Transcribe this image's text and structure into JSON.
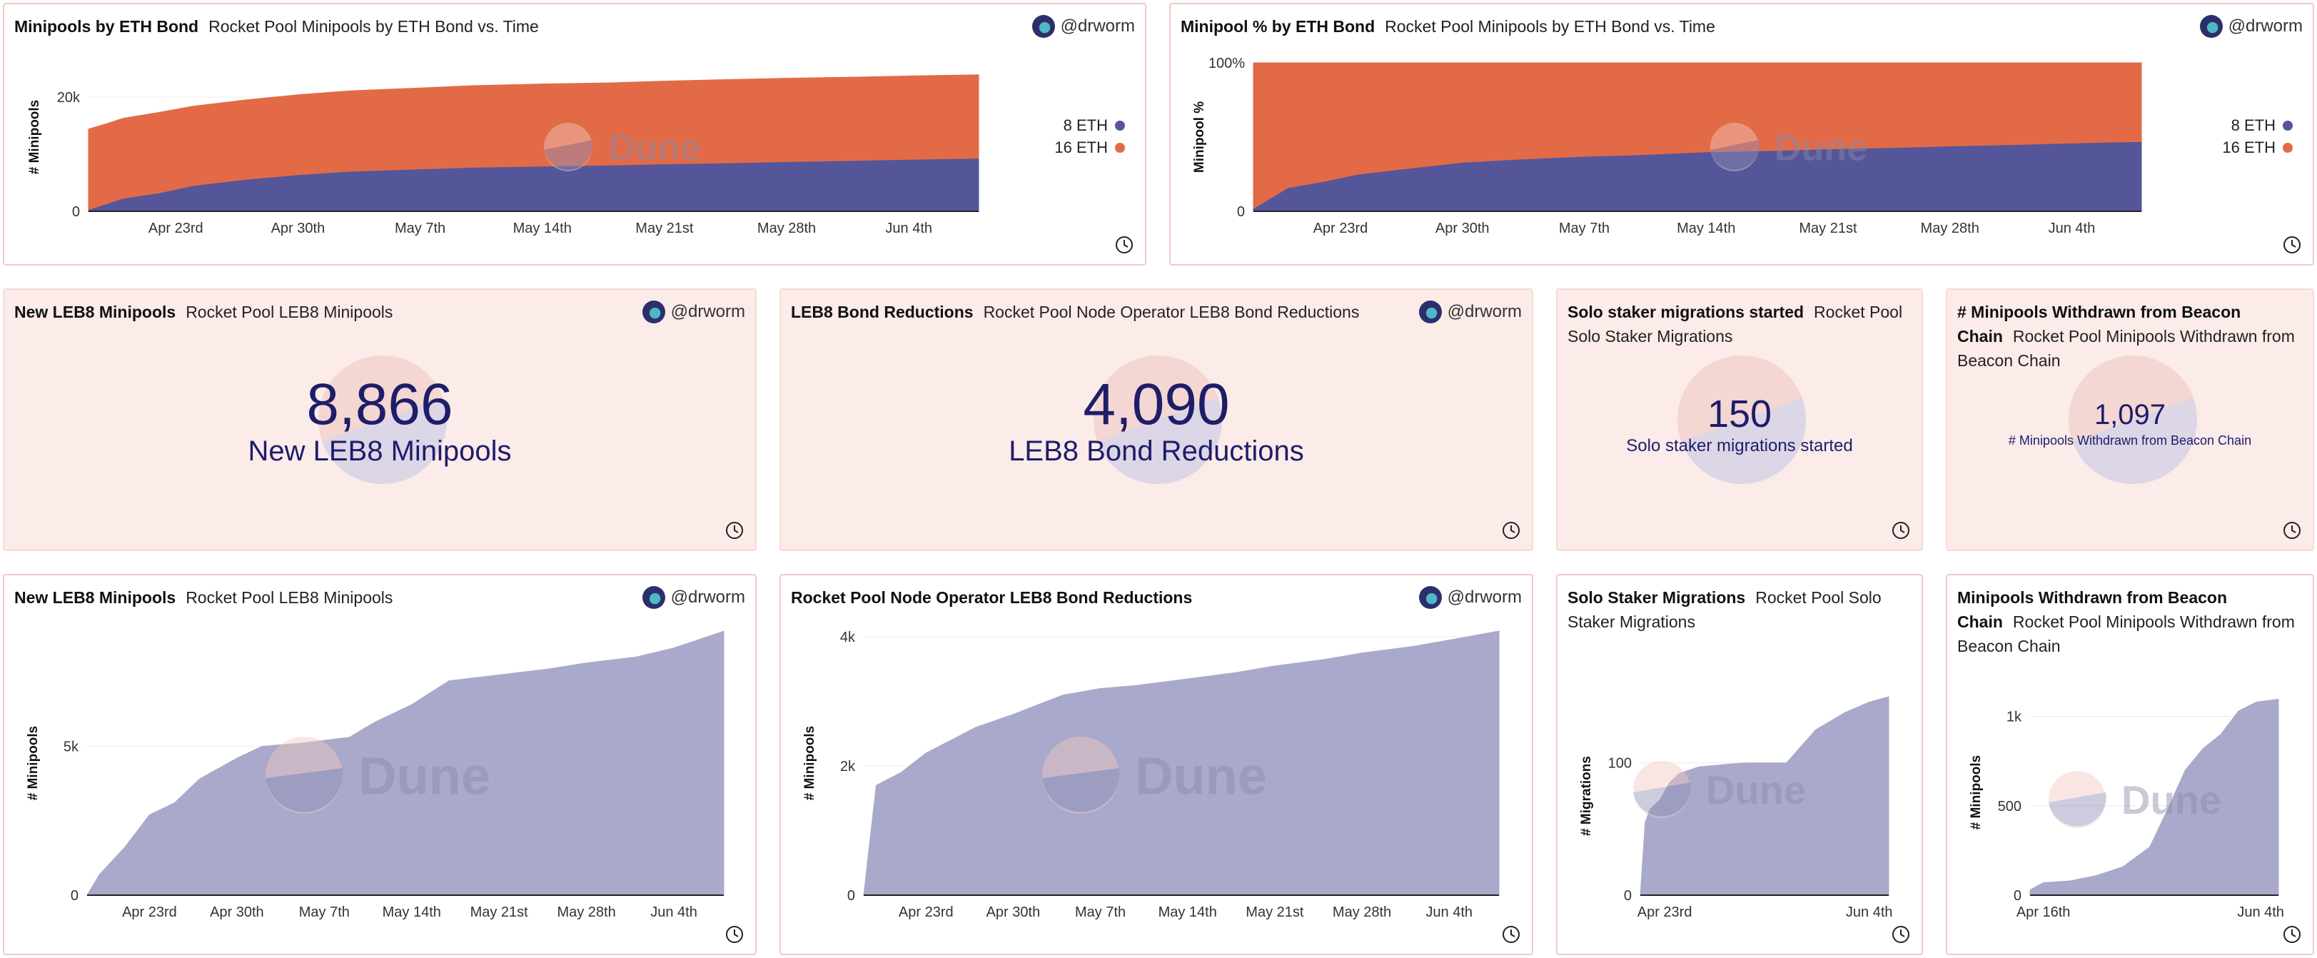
{
  "author": "@drworm",
  "colors": {
    "eth8": "#545699",
    "eth16": "#e36a47",
    "area": "#a9a9cb",
    "counter_text": "#1d1d6a"
  },
  "watermark": "Dune",
  "panels": {
    "bond": {
      "title": "Minipools by ETH Bond",
      "subtitle": "Rocket Pool Minipools by ETH Bond vs. Time"
    },
    "bond_pct": {
      "title": "Minipool % by ETH Bond",
      "subtitle": "Rocket Pool Minipools by ETH Bond vs. Time"
    },
    "leb8_counter": {
      "title": "New LEB8 Minipools",
      "subtitle": "Rocket Pool LEB8 Minipools",
      "value": "8,866",
      "label": "New LEB8 Minipools"
    },
    "reductions_counter": {
      "title": "LEB8 Bond Reductions",
      "subtitle": "Rocket Pool Node Operator LEB8 Bond Reductions",
      "value": "4,090",
      "label": "LEB8 Bond Reductions"
    },
    "solo_counter": {
      "title": "Solo staker migrations started",
      "subtitle": "Rocket Pool Solo Staker Migrations",
      "value": "150",
      "label": "Solo staker migrations started"
    },
    "withdrawn_counter": {
      "title": "# Minipools Withdrawn from Beacon Chain",
      "subtitle": "Rocket Pool Minipools Withdrawn from Beacon Chain",
      "value": "1,097",
      "label": "# Minipools Withdrawn from Beacon Chain"
    },
    "leb8_chart": {
      "title": "New LEB8 Minipools",
      "subtitle": "Rocket Pool LEB8 Minipools"
    },
    "reductions_chart": {
      "title": "Rocket Pool Node Operator LEB8 Bond Reductions",
      "subtitle": ""
    },
    "solo_chart": {
      "title": "Solo Staker Migrations",
      "subtitle": "Rocket Pool Solo Staker Migrations"
    },
    "withdrawn_chart": {
      "title": "Minipools Withdrawn from Beacon Chain",
      "subtitle": "Rocket Pool Minipools Withdrawn from Beacon Chain"
    }
  },
  "chart_data": [
    {
      "id": "bond",
      "type": "area",
      "stacked": true,
      "ylabel": "# Minipools",
      "ylim": [
        0,
        26000
      ],
      "y_ticks": [
        0,
        20000
      ],
      "y_tick_labels": [
        "0",
        "20k"
      ],
      "x_ticks": [
        "2023-04-23",
        "2023-04-30",
        "2023-05-07",
        "2023-05-14",
        "2023-05-21",
        "2023-05-28",
        "2023-06-04"
      ],
      "x_tick_labels": [
        "Apr 23rd",
        "Apr 30th",
        "May 7th",
        "May 14th",
        "May 21st",
        "May 28th",
        "Jun 4th"
      ],
      "xlim": [
        "2023-04-18",
        "2023-06-08"
      ],
      "legend": "right",
      "x": [
        "2023-04-18",
        "2023-04-19",
        "2023-04-20",
        "2023-04-22",
        "2023-04-24",
        "2023-04-27",
        "2023-04-30",
        "2023-05-03",
        "2023-05-07",
        "2023-05-10",
        "2023-05-14",
        "2023-05-18",
        "2023-05-21",
        "2023-05-25",
        "2023-05-28",
        "2023-06-01",
        "2023-06-04",
        "2023-06-08"
      ],
      "series": [
        {
          "name": "8 ETH",
          "values": [
            300,
            1300,
            2300,
            3200,
            4500,
            5600,
            6400,
            7000,
            7400,
            7700,
            7900,
            8100,
            8300,
            8500,
            8700,
            8900,
            9100,
            9300
          ]
        },
        {
          "name": "16 ETH",
          "values": [
            14100,
            14000,
            14000,
            14100,
            13900,
            13900,
            14000,
            14100,
            14200,
            14300,
            14400,
            14400,
            14500,
            14600,
            14600,
            14600,
            14600,
            14600
          ]
        }
      ]
    },
    {
      "id": "bond_pct",
      "type": "area",
      "stacked": true,
      "ylabel": "Minipool %",
      "ylim": [
        0,
        100
      ],
      "y_ticks": [
        0,
        100
      ],
      "y_tick_labels": [
        "0",
        "100%"
      ],
      "x_ticks": [
        "2023-04-23",
        "2023-04-30",
        "2023-05-07",
        "2023-05-14",
        "2023-05-21",
        "2023-05-28",
        "2023-06-04"
      ],
      "x_tick_labels": [
        "Apr 23rd",
        "Apr 30th",
        "May 7th",
        "May 14th",
        "May 21st",
        "May 28th",
        "Jun 4th"
      ],
      "xlim": [
        "2023-04-18",
        "2023-06-08"
      ],
      "legend": "right",
      "x": [
        "2023-04-18",
        "2023-04-19",
        "2023-04-20",
        "2023-04-22",
        "2023-04-24",
        "2023-04-27",
        "2023-04-30",
        "2023-05-03",
        "2023-05-07",
        "2023-05-10",
        "2023-05-14",
        "2023-05-18",
        "2023-05-21",
        "2023-05-25",
        "2023-05-28",
        "2023-06-01",
        "2023-06-04",
        "2023-06-08"
      ],
      "series": [
        {
          "name": "8 ETH",
          "values": [
            2,
            9,
            16,
            20,
            25,
            29,
            33,
            35,
            37,
            38,
            40,
            41,
            42,
            43,
            44,
            45,
            46,
            47
          ]
        },
        {
          "name": "16 ETH",
          "values": [
            98,
            91,
            84,
            80,
            75,
            71,
            67,
            65,
            63,
            62,
            60,
            59,
            58,
            57,
            56,
            55,
            54,
            53
          ]
        }
      ]
    },
    {
      "id": "leb8_chart",
      "type": "area",
      "ylabel": "# Minipools",
      "ylim": [
        0,
        8870
      ],
      "y_ticks": [
        0,
        5000
      ],
      "y_tick_labels": [
        "0",
        "5k"
      ],
      "x_ticks": [
        "2023-04-23",
        "2023-04-30",
        "2023-05-07",
        "2023-05-14",
        "2023-05-21",
        "2023-05-28",
        "2023-06-04"
      ],
      "x_tick_labels": [
        "Apr 23rd",
        "Apr 30th",
        "May 7th",
        "May 14th",
        "May 21st",
        "May 28th",
        "Jun 4th"
      ],
      "xlim": [
        "2023-04-18",
        "2023-06-08"
      ],
      "x": [
        "2023-04-18",
        "2023-04-19",
        "2023-04-21",
        "2023-04-23",
        "2023-04-25",
        "2023-04-27",
        "2023-04-30",
        "2023-05-02",
        "2023-05-05",
        "2023-05-09",
        "2023-05-11",
        "2023-05-14",
        "2023-05-17",
        "2023-05-21",
        "2023-05-25",
        "2023-05-28",
        "2023-06-01",
        "2023-06-04",
        "2023-06-08"
      ],
      "values": [
        0,
        700,
        1600,
        2700,
        3100,
        3900,
        4600,
        5000,
        5100,
        5300,
        5800,
        6400,
        7200,
        7400,
        7600,
        7800,
        8000,
        8300,
        8866
      ]
    },
    {
      "id": "reductions_chart",
      "type": "area",
      "ylabel": "# Minipools",
      "ylim": [
        0,
        4090
      ],
      "y_ticks": [
        0,
        2000,
        4000
      ],
      "y_tick_labels": [
        "0",
        "2k",
        "4k"
      ],
      "x_ticks": [
        "2023-04-23",
        "2023-04-30",
        "2023-05-07",
        "2023-05-14",
        "2023-05-21",
        "2023-05-28",
        "2023-06-04"
      ],
      "x_tick_labels": [
        "Apr 23rd",
        "Apr 30th",
        "May 7th",
        "May 14th",
        "May 21st",
        "May 28th",
        "Jun 4th"
      ],
      "xlim": [
        "2023-04-18",
        "2023-06-08"
      ],
      "x": [
        "2023-04-18",
        "2023-04-19",
        "2023-04-21",
        "2023-04-23",
        "2023-04-25",
        "2023-04-27",
        "2023-04-30",
        "2023-05-02",
        "2023-05-04",
        "2023-05-07",
        "2023-05-10",
        "2023-05-14",
        "2023-05-18",
        "2023-05-21",
        "2023-05-25",
        "2023-05-28",
        "2023-06-01",
        "2023-06-04",
        "2023-06-08"
      ],
      "values": [
        0,
        1700,
        1900,
        2200,
        2400,
        2600,
        2800,
        2950,
        3100,
        3200,
        3250,
        3350,
        3450,
        3550,
        3650,
        3750,
        3850,
        3950,
        4090
      ]
    },
    {
      "id": "solo_chart",
      "type": "area",
      "ylabel": "# Migrations",
      "ylim": [
        0,
        150
      ],
      "y_ticks": [
        0,
        100
      ],
      "y_tick_labels": [
        "0",
        "100"
      ],
      "x_ticks": [
        "2023-04-23",
        "2023-06-04"
      ],
      "x_tick_labels": [
        "Apr 23rd",
        "Jun 4th"
      ],
      "xlim": [
        "2023-04-18",
        "2023-06-08"
      ],
      "x": [
        "2023-04-18",
        "2023-04-19",
        "2023-04-20",
        "2023-04-22",
        "2023-04-24",
        "2023-04-26",
        "2023-04-30",
        "2023-05-06",
        "2023-05-10",
        "2023-05-18",
        "2023-05-24",
        "2023-05-30",
        "2023-06-04",
        "2023-06-08"
      ],
      "values": [
        0,
        55,
        65,
        72,
        85,
        92,
        97,
        99,
        100,
        100,
        125,
        138,
        146,
        150
      ]
    },
    {
      "id": "withdrawn_chart",
      "type": "area",
      "ylabel": "# Minipools",
      "ylim": [
        0,
        1150
      ],
      "y_ticks": [
        0,
        500,
        1000
      ],
      "y_tick_labels": [
        "0",
        "500",
        "1k"
      ],
      "x_ticks": [
        "2023-04-16",
        "2023-06-04"
      ],
      "x_tick_labels": [
        "Apr 16th",
        "Jun 4th"
      ],
      "xlim": [
        "2023-04-13",
        "2023-06-08"
      ],
      "x": [
        "2023-04-13",
        "2023-04-16",
        "2023-04-22",
        "2023-04-28",
        "2023-05-04",
        "2023-05-10",
        "2023-05-14",
        "2023-05-18",
        "2023-05-22",
        "2023-05-26",
        "2023-05-30",
        "2023-06-03",
        "2023-06-08"
      ],
      "values": [
        30,
        70,
        80,
        110,
        160,
        270,
        480,
        700,
        820,
        900,
        1030,
        1080,
        1097
      ]
    }
  ]
}
